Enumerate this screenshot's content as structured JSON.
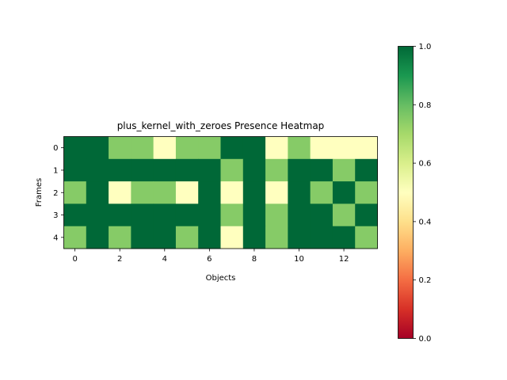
{
  "chart_data": {
    "type": "heatmap",
    "title": "plus_kernel_with_zeroes Presence Heatmap",
    "xlabel": "Objects",
    "ylabel": "Frames",
    "x_ticks": [
      0,
      2,
      4,
      6,
      8,
      10,
      12
    ],
    "y_ticks": [
      0,
      1,
      2,
      3,
      4
    ],
    "colorbar": {
      "colormap": "RdYlGn",
      "range": [
        0.0,
        1.0
      ],
      "ticks": [
        "0.0",
        "0.2",
        "0.4",
        "0.6",
        "0.8",
        "1.0"
      ]
    },
    "values": [
      [
        1,
        1,
        0.75,
        0.75,
        0.5,
        0.75,
        0.75,
        1,
        1,
        0.5,
        0.75,
        0.5,
        0.5,
        0.5
      ],
      [
        1,
        1,
        1,
        1,
        1,
        1,
        1,
        0.75,
        1,
        0.75,
        1,
        1,
        0.75,
        1
      ],
      [
        0.75,
        1,
        0.5,
        0.75,
        0.75,
        0.5,
        1,
        0.5,
        1,
        0.5,
        1,
        0.75,
        1,
        0.75
      ],
      [
        1,
        1,
        1,
        1,
        1,
        1,
        1,
        0.75,
        1,
        0.75,
        1,
        1,
        0.75,
        1
      ],
      [
        0.75,
        1,
        0.75,
        1,
        1,
        0.75,
        1,
        0.5,
        1,
        0.75,
        1,
        1,
        1,
        0.75
      ]
    ]
  }
}
